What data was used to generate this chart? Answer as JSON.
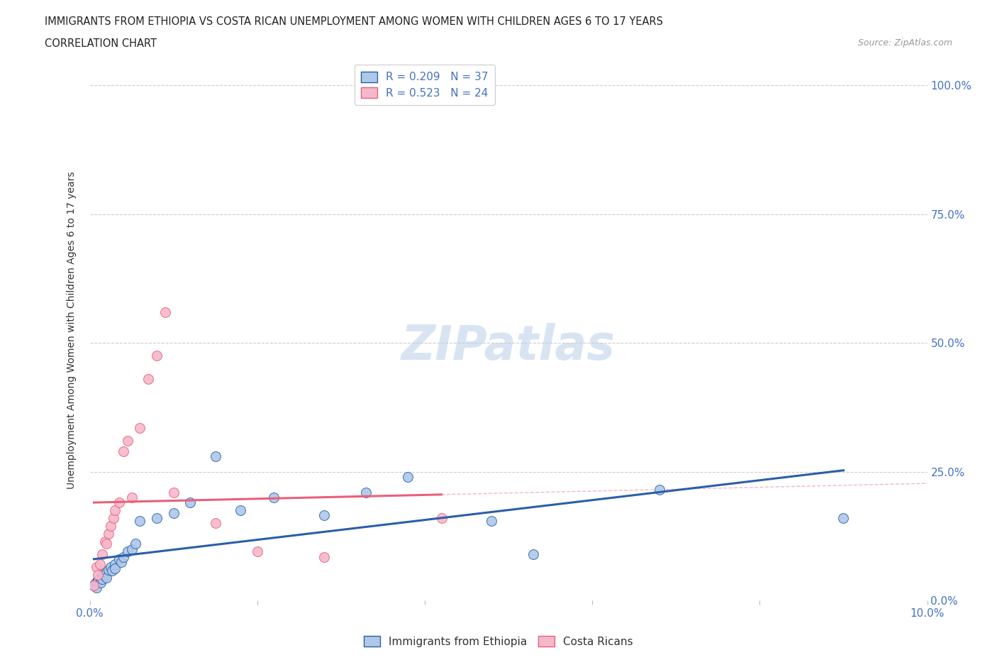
{
  "title_line1": "IMMIGRANTS FROM ETHIOPIA VS COSTA RICAN UNEMPLOYMENT AMONG WOMEN WITH CHILDREN AGES 6 TO 17 YEARS",
  "title_line2": "CORRELATION CHART",
  "source": "Source: ZipAtlas.com",
  "ylabel": "Unemployment Among Women with Children Ages 6 to 17 years",
  "xlim": [
    0.0,
    0.1
  ],
  "ylim": [
    0.0,
    1.05
  ],
  "r_ethiopia": 0.209,
  "n_ethiopia": 37,
  "r_costarica": 0.523,
  "n_costarica": 24,
  "color_ethiopia": "#adc8e8",
  "color_costarica": "#f5b8cb",
  "line_color_ethiopia": "#2a5fa8",
  "line_color_costarica": "#e8607a",
  "watermark": "ZIPatlas",
  "ethiopia_x": [
    0.0005,
    0.0007,
    0.0008,
    0.001,
    0.001,
    0.0012,
    0.0013,
    0.0015,
    0.0015,
    0.0018,
    0.002,
    0.002,
    0.0022,
    0.0025,
    0.0027,
    0.003,
    0.003,
    0.0035,
    0.0038,
    0.004,
    0.0045,
    0.005,
    0.0055,
    0.006,
    0.008,
    0.01,
    0.012,
    0.015,
    0.018,
    0.022,
    0.028,
    0.033,
    0.038,
    0.048,
    0.053,
    0.068,
    0.09
  ],
  "ethiopia_y": [
    0.03,
    0.035,
    0.025,
    0.04,
    0.038,
    0.045,
    0.035,
    0.05,
    0.042,
    0.048,
    0.055,
    0.045,
    0.06,
    0.065,
    0.058,
    0.07,
    0.062,
    0.08,
    0.075,
    0.085,
    0.095,
    0.1,
    0.11,
    0.155,
    0.16,
    0.17,
    0.19,
    0.28,
    0.175,
    0.2,
    0.165,
    0.21,
    0.24,
    0.155,
    0.09,
    0.215,
    0.16
  ],
  "costarica_x": [
    0.0005,
    0.0008,
    0.001,
    0.0012,
    0.0015,
    0.0018,
    0.002,
    0.0022,
    0.0025,
    0.0028,
    0.003,
    0.0035,
    0.004,
    0.0045,
    0.005,
    0.006,
    0.007,
    0.008,
    0.009,
    0.01,
    0.015,
    0.02,
    0.028,
    0.042
  ],
  "costarica_y": [
    0.03,
    0.065,
    0.05,
    0.07,
    0.09,
    0.115,
    0.11,
    0.13,
    0.145,
    0.16,
    0.175,
    0.19,
    0.29,
    0.31,
    0.2,
    0.335,
    0.43,
    0.475,
    0.56,
    0.21,
    0.15,
    0.095,
    0.085,
    0.16
  ]
}
